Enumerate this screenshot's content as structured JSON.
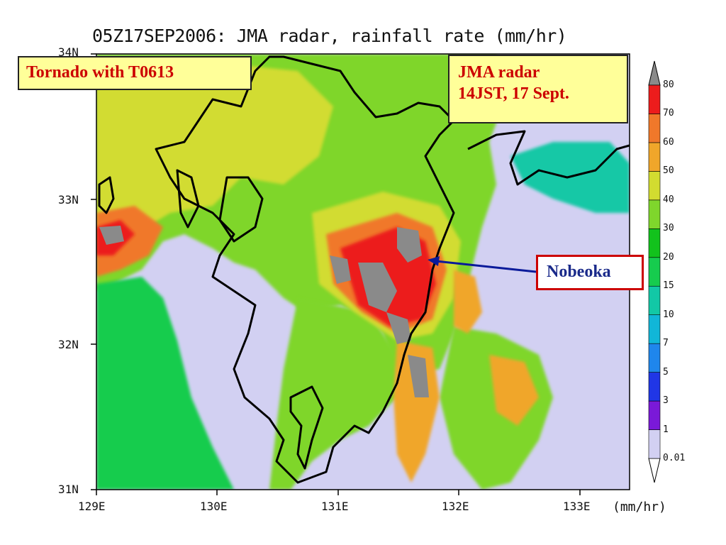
{
  "title": "05Z17SEP2006: JMA radar, rainfall rate (mm/hr)",
  "callouts": {
    "tornado": "Tornado with T0613",
    "jma_line1": "JMA radar",
    "jma_line2": "14JST, 17 Sept.",
    "nobeoka": "Nobeoka"
  },
  "axes": {
    "x_ticks": [
      "129E",
      "130E",
      "131E",
      "132E",
      "133E"
    ],
    "y_ticks": [
      "31N",
      "32N",
      "33N",
      "34N"
    ],
    "x_range": [
      129,
      133.4
    ],
    "y_range": [
      31,
      34
    ],
    "units": "(mm/hr)"
  },
  "colorbar": {
    "levels": [
      "0.01",
      "1",
      "3",
      "5",
      "7",
      "10",
      "15",
      "20",
      "30",
      "40",
      "50",
      "60",
      "70",
      "80"
    ],
    "colors": [
      "#d2d0f2",
      "#7a19d8",
      "#2036e6",
      "#1f86ec",
      "#11b6d8",
      "#12c8a6",
      "#16cc4e",
      "#12c21c",
      "#7fd62c",
      "#d2dc30",
      "#f0a62a",
      "#f0782a",
      "#ec1c1c",
      "#dc146e",
      "#8a8a8a"
    ]
  },
  "colors": {
    "map_background": "#d2d0f2",
    "callout_fill": "#ffff99",
    "callout_text": "#cc0000",
    "nobeoka_text": "#1a2a8a",
    "nobeoka_border": "#cc0000",
    "arrow": "#0a1a9a"
  }
}
